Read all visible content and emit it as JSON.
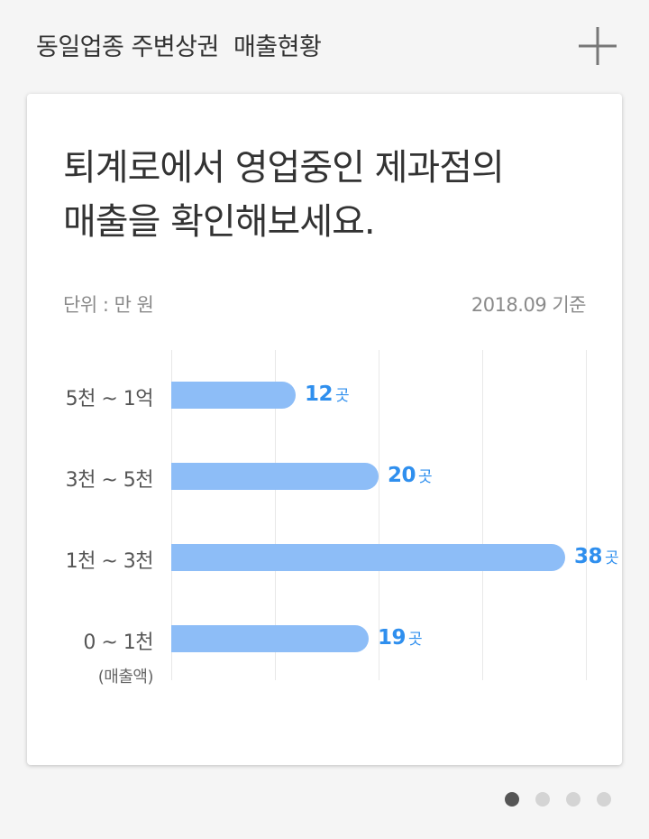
{
  "header": {
    "title": "동일업종 주변상권  매출현황",
    "add_icon": "plus-icon"
  },
  "card": {
    "headline_line1": "퇴계로에서 영업중인 제과점의",
    "headline_line2": "매출을 확인해보세요.",
    "unit_label": "단위 : 만 원",
    "date_label": "2018.09 기준",
    "axis_note": "(매출액)"
  },
  "chart_data": {
    "type": "bar",
    "orientation": "horizontal",
    "categories": [
      "5천 ~ 1억",
      "3천 ~ 5천",
      "1천 ~ 3천",
      "0 ~ 1천"
    ],
    "values": [
      12,
      20,
      38,
      19
    ],
    "value_unit": "곳",
    "xlim": [
      0,
      40
    ],
    "grid": true,
    "bar_color": "#8dbdf7",
    "label_color": "#2f8fee"
  },
  "pager": {
    "count": 4,
    "active_index": 0
  }
}
